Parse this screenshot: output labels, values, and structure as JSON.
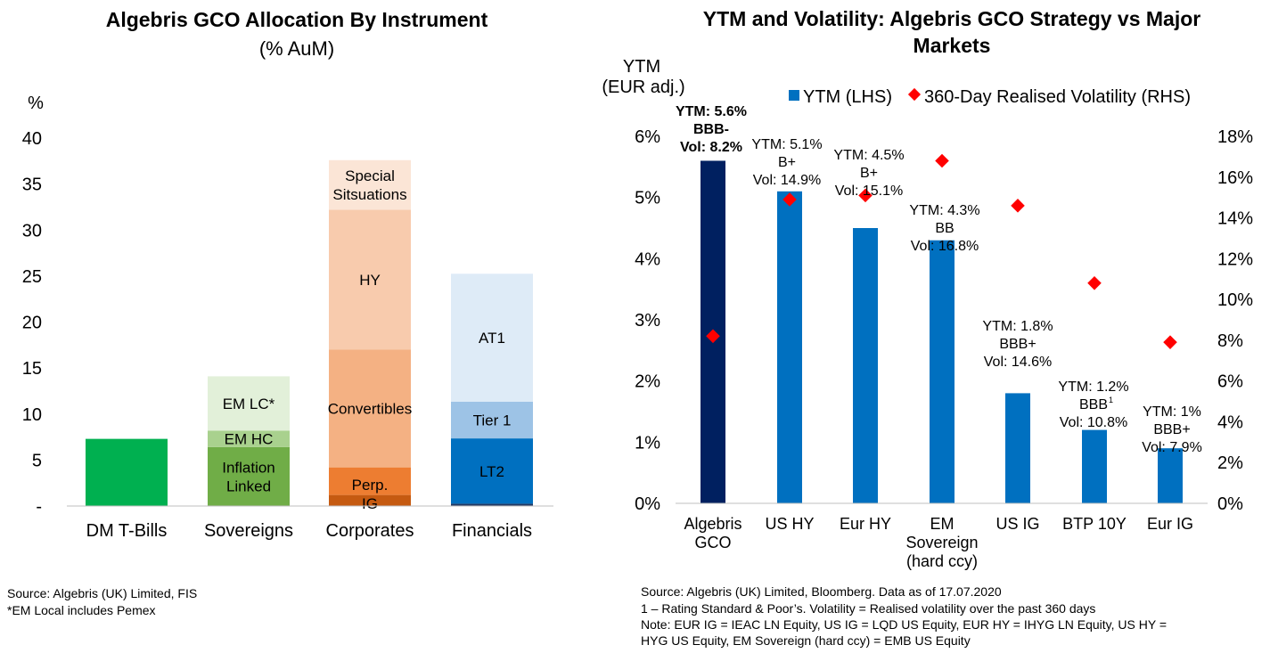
{
  "chart_data": [
    {
      "type": "bar",
      "stacked": true,
      "title": "Algebris GCO Allocation By Instrument",
      "subtitle": "(% AuM)",
      "ylabel": "%",
      "ylim": [
        0,
        40
      ],
      "yticks": [
        "-",
        "5",
        "10",
        "15",
        "20",
        "25",
        "30",
        "35",
        "40"
      ],
      "ytick_values": [
        0,
        5,
        10,
        15,
        20,
        25,
        30,
        35,
        40
      ],
      "categories": [
        "DM T-Bills",
        "Sovereigns",
        "Corporates",
        "Financials"
      ],
      "stacks": [
        {
          "category": "DM T-Bills",
          "segments": [
            {
              "label": "",
              "value": 7.3,
              "color": "#00b050"
            }
          ]
        },
        {
          "category": "Sovereigns",
          "segments": [
            {
              "label": "Inflation Linked",
              "value": 6.4,
              "color": "#70ad47"
            },
            {
              "label": "EM HC",
              "value": 1.8,
              "color": "#a9d18e"
            },
            {
              "label": "EM LC*",
              "value": 5.9,
              "color": "#e2f0d9"
            }
          ]
        },
        {
          "category": "Corporates",
          "segments": [
            {
              "label": "IG",
              "value": 1.2,
              "color": "#c55a11"
            },
            {
              "label": "Perp.",
              "value": 3.0,
              "color": "#ed7d31"
            },
            {
              "label": "Convertibles",
              "value": 12.8,
              "color": "#f4b183"
            },
            {
              "label": "HY",
              "value": 15.2,
              "color": "#f8cbad"
            },
            {
              "label": "Special Sitsuations",
              "value": 5.4,
              "color": "#fbe5d6"
            }
          ]
        },
        {
          "category": "Financials",
          "segments": [
            {
              "label": "",
              "value": 0.25,
              "color": "#1f3864"
            },
            {
              "label": "LT2",
              "value": 7.1,
              "color": "#0070c0"
            },
            {
              "label": "Tier 1",
              "value": 4.0,
              "color": "#9dc3e6"
            },
            {
              "label": "AT1",
              "value": 13.9,
              "color": "#deebf7"
            }
          ]
        }
      ]
    },
    {
      "type": "bar",
      "title": "YTM and Volatility: Algebris GCO Strategy vs Major Markets",
      "ylabel": "YTM (EUR adj.)",
      "ylim": [
        0,
        6
      ],
      "yticks_left": [
        "0%",
        "1%",
        "2%",
        "3%",
        "4%",
        "5%",
        "6%"
      ],
      "y2lim": [
        0,
        18
      ],
      "yticks_right": [
        "0%",
        "2%",
        "4%",
        "6%",
        "8%",
        "10%",
        "12%",
        "14%",
        "16%",
        "18%"
      ],
      "legend_position": "top",
      "categories": [
        "Algebris GCO",
        "US HY",
        "Eur HY",
        "EM Sovereign (hard ccy)",
        "US IG",
        "BTP 10Y",
        "Eur IG"
      ],
      "series": [
        {
          "name": "YTM (LHS)",
          "type": "bar",
          "axis": "left",
          "color": "#0070c0",
          "values": [
            5.6,
            5.1,
            4.5,
            4.3,
            1.8,
            1.2,
            0.9
          ],
          "colors": [
            "#002060",
            "#0070c0",
            "#0070c0",
            "#0070c0",
            "#0070c0",
            "#0070c0",
            "#0070c0"
          ]
        },
        {
          "name": "360-Day Realised Volatility (RHS)",
          "type": "scatter",
          "axis": "right",
          "color": "#ff0000",
          "values": [
            8.2,
            14.9,
            15.1,
            16.8,
            14.6,
            10.8,
            7.9
          ]
        }
      ],
      "annotations": [
        {
          "category": "Algebris GCO",
          "lines": [
            "YTM: 5.6%",
            "BBB-",
            "Vol: 8.2%"
          ],
          "bold": true
        },
        {
          "category": "US HY",
          "lines": [
            "YTM: 5.1%",
            "B+",
            "Vol: 14.9%"
          ]
        },
        {
          "category": "Eur HY",
          "lines": [
            "YTM: 4.5%",
            "B+",
            "Vol: 15.1%"
          ]
        },
        {
          "category": "EM Sovereign (hard ccy)",
          "lines": [
            "YTM: 4.3%",
            "BB",
            "Vol: 16.8%"
          ]
        },
        {
          "category": "US IG",
          "lines": [
            "YTM: 1.8%",
            "BBB+",
            "Vol: 14.6%"
          ]
        },
        {
          "category": "BTP 10Y",
          "lines": [
            "YTM: 1.2%",
            "BBB",
            "Vol: 10.8%"
          ],
          "superscript": "1"
        },
        {
          "category": "Eur IG",
          "lines": [
            "YTM: 1%",
            "BBB+",
            "Vol: 7.9%"
          ]
        }
      ]
    }
  ],
  "footnotes": {
    "left": [
      "Source: Algebris (UK) Limited, FIS",
      "*EM Local includes Pemex"
    ],
    "right": [
      "Source: Algebris (UK) Limited, Bloomberg. Data as of 17.07.2020",
      "1 – Rating Standard & Poor’s. Volatility = Realised volatility over the past 360 days",
      "Note: EUR IG = IEAC LN Equity, US IG = LQD US Equity, EUR HY = IHYG LN Equity, US HY =",
      "HYG US Equity, EM Sovereign (hard ccy) = EMB US Equity"
    ]
  }
}
